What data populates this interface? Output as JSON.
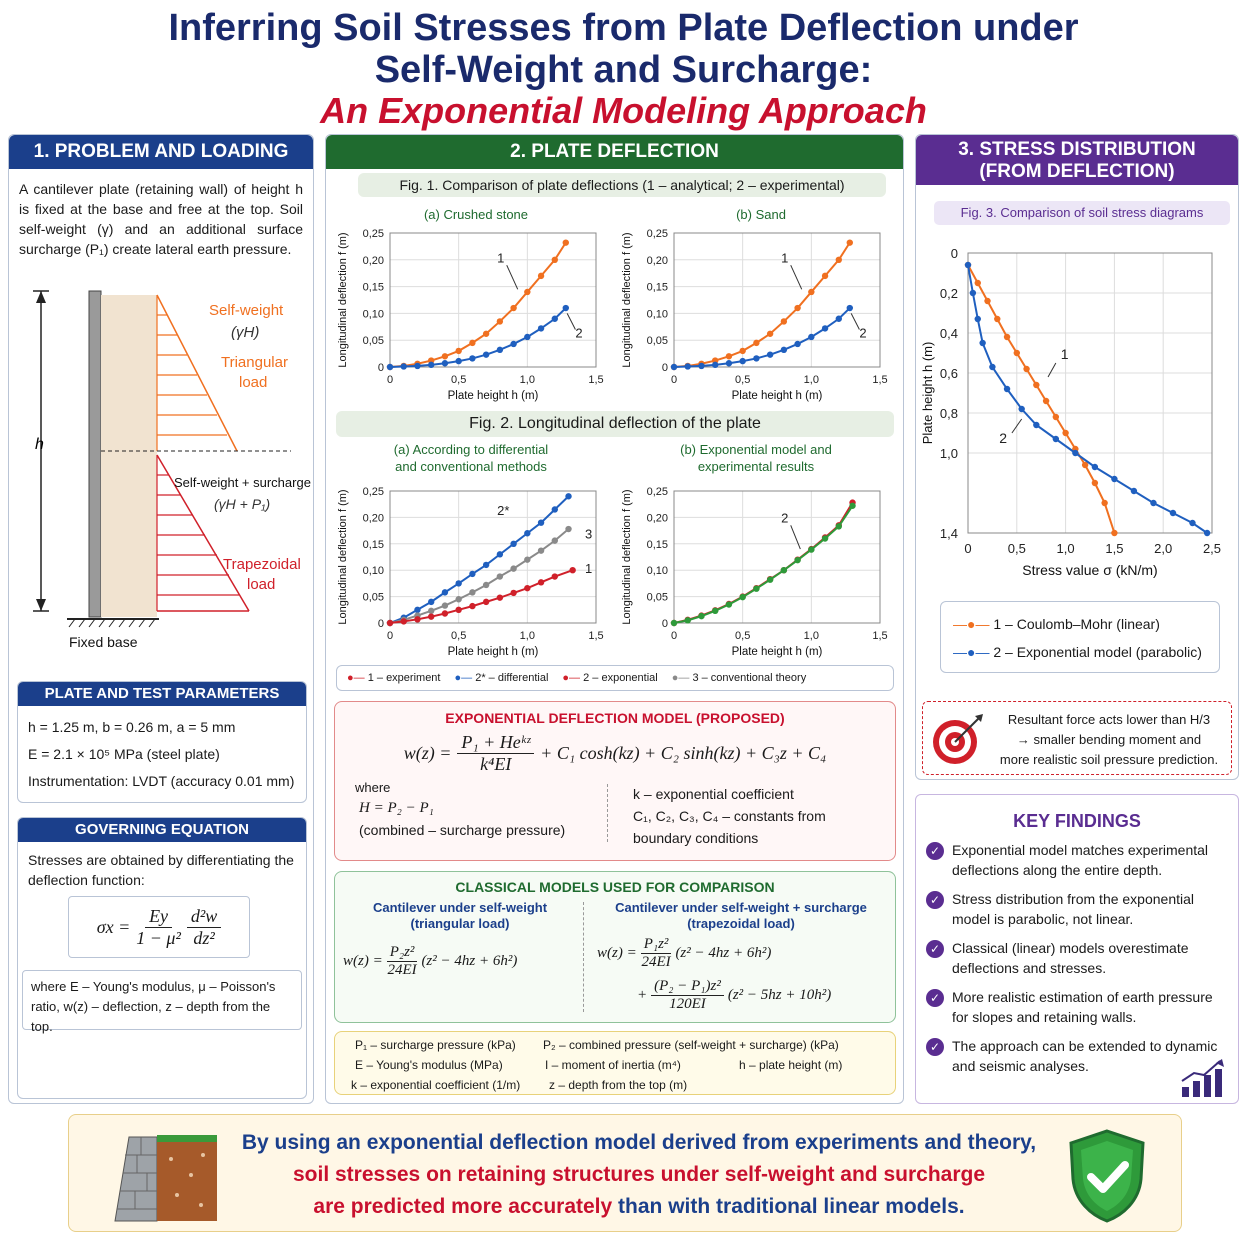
{
  "title": {
    "line1": "Inferring Soil Stresses from Plate Deflection under",
    "line2": "Self-Weight and Surcharge:",
    "line3": "An Exponential Modeling Approach"
  },
  "section1": {
    "header": "1. PROBLEM AND LOADING",
    "intro": "A cantilever plate (retaining wall) of height h is fixed at the base and free at the top. Soil self-weight (γ) and an additional surface surcharge (P₁) create lateral earth pressure.",
    "diagram": {
      "h_label": "h",
      "self_weight": "Self-weight",
      "gamma_h": "(γH)",
      "triangular": "Triangular",
      "load": "load",
      "sw_surcharge": "Self-weight + surcharge",
      "gamma_h_p1": "(γH + P₁)",
      "trapezoidal": "Trapezoidal",
      "load2": "load",
      "fixed_base": "Fixed base"
    },
    "params_header": "PLATE AND TEST PARAMETERS",
    "params": [
      "h = 1.25 m,  b = 0.26 m,  a = 5 mm",
      "E = 2.1 × 10⁵ MPa (steel plate)",
      "Instrumentation: LVDT (accuracy 0.01 mm)"
    ],
    "gov_header": "GOVERNING EQUATION",
    "gov_text": "Stresses are obtained by differentiating the deflection function:",
    "gov_eq_lhs": "σx =",
    "gov_eq_num1": "Ey",
    "gov_eq_den1": "1 − μ²",
    "gov_eq_num2": "d²w",
    "gov_eq_den2": "dz²",
    "gov_note": "where E – Young's modulus, μ – Poisson's ratio, w(z) – deflection, z – depth from the top."
  },
  "section2": {
    "header": "2. PLATE DEFLECTION",
    "fig1_caption": "Fig. 1. Comparison of plate deflections (1 – analytical; 2 – experimental)",
    "fig1a_title": "(a) Crushed stone",
    "fig1b_title": "(b) Sand",
    "fig2_caption": "Fig. 2. Longitudinal deflection of the plate",
    "fig2a_title_l1": "(a) According to differential",
    "fig2a_title_l2": "and conventional methods",
    "fig2b_title_l1": "(b) Exponential model and",
    "fig2b_title_l2": "experimental results",
    "ylabel": "Longitudinal deflection f (m)",
    "xlabel": "Plate height h (m)",
    "legend": [
      "1 – experiment",
      "2* – differential",
      "2 – exponential",
      "3 – conventional theory"
    ],
    "model_header": "EXPONENTIAL DEFLECTION MODEL (PROPOSED)",
    "model_eq": "w(z) = (P₁ + He^{kz}) / (k⁴EI) + C₁ cosh(kz) + C₂ sinh(kz) + C₃z + C₄",
    "model_eq_lhs": "w(z) =",
    "model_eq_num": "P₁ + Heᵏᶻ",
    "model_eq_den": "k⁴EI",
    "model_eq_rest": "+ C₁ cosh(kz) + C₂ sinh(kz) + C₃z + C₄",
    "where": "where",
    "h_def": "H = P₂ − P₁",
    "h_def_note": "(combined – surcharge pressure)",
    "k_def": "k – exponential coefficient",
    "c_def": "C₁, C₂, C₃, C₄ – constants from",
    "c_def2": "boundary conditions",
    "classic_header": "CLASSICAL MODELS USED FOR COMPARISON",
    "classic_left_title": "Cantilever under self-weight",
    "classic_left_sub": "(triangular load)",
    "classic_left_eq_lhs": "w(z) =",
    "classic_left_num": "P₂z²",
    "classic_left_den": "24EI",
    "classic_left_rest": "(z² − 4hz + 6h²)",
    "classic_right_title": "Cantilever under self-weight + surcharge",
    "classic_right_sub": "(trapezoidal load)",
    "classic_right_eq_lhs": "w(z) =",
    "classic_right_num1": "P₁z²",
    "classic_right_den1": "24EI",
    "classic_right_rest1": "(z² − 4hz + 6h²)",
    "classic_right_num2": "(P₂ − P₁)z²",
    "classic_right_den2": "120EI",
    "classic_right_rest2": "(z² − 5hz + 10h²)",
    "notation": [
      "P₁ – surcharge pressure (kPa)",
      "P₂ – combined pressure (self-weight + surcharge) (kPa)",
      "E – Young's modulus (MPa)",
      "I – moment of inertia (m⁴)",
      "h – plate height (m)",
      "k – exponential coefficient (1/m)",
      "z – depth from the top (m)"
    ]
  },
  "section3": {
    "header_l1": "3. STRESS DISTRIBUTION",
    "header_l2": "(FROM DEFLECTION)",
    "fig3_caption": "Fig. 3. Comparison of soil stress diagrams",
    "ylabel": "Plate height h (m)",
    "xlabel": "Stress value σ (kN/m)",
    "legend": [
      "1 – Coulomb–Mohr (linear)",
      "2 – Exponential model (parabolic)"
    ],
    "resultant": "Resultant force acts lower than H/3 → smaller bending moment and more realistic soil pressure prediction.",
    "resultant_l1": "Resultant force acts lower than H/3",
    "resultant_l2": "→ smaller bending moment and",
    "resultant_l3": "more realistic soil pressure prediction.",
    "findings_header": "KEY FINDINGS",
    "findings": [
      "Exponential model matches experimental deflections along the entire depth.",
      "Stress distribution from the exponential model is parabolic, not linear.",
      "Classical (linear) models overestimate deflections and stresses.",
      "More realistic estimation of earth pressure for slopes and retaining walls.",
      "The approach can be extended to dynamic and seismic analyses."
    ]
  },
  "footer": {
    "line1": "By using an exponential deflection model derived from experiments and theory,",
    "line2": "soil stresses on retaining structures under self-weight and surcharge",
    "line3a": "are predicted more accurately",
    "line3b": " than with traditional linear models."
  },
  "colors": {
    "orange": "#f07020",
    "blue": "#1f5fbf",
    "gray": "#8a8a8a",
    "red": "#d0202a",
    "green": "#2e9a3a"
  },
  "chart_data": [
    {
      "type": "line",
      "title": "(a) Crushed stone",
      "xlabel": "Plate height h (m)",
      "ylabel": "Longitudinal deflection f (m)",
      "xlim": [
        0,
        1.5
      ],
      "ylim": [
        0,
        0.25
      ],
      "xticks": [
        "0",
        "0,5",
        "1,0",
        "1,5"
      ],
      "yticks": [
        "0",
        "0,05",
        "0,10",
        "0,15",
        "0,20",
        "0,25"
      ],
      "series": [
        {
          "name": "1",
          "x": [
            0,
            0.1,
            0.2,
            0.3,
            0.4,
            0.5,
            0.6,
            0.7,
            0.8,
            0.9,
            1.0,
            1.1,
            1.2,
            1.28
          ],
          "y": [
            0,
            0.002,
            0.006,
            0.012,
            0.02,
            0.03,
            0.045,
            0.062,
            0.085,
            0.11,
            0.14,
            0.17,
            0.2,
            0.232
          ]
        },
        {
          "name": "2",
          "x": [
            0,
            0.1,
            0.2,
            0.3,
            0.4,
            0.5,
            0.6,
            0.7,
            0.8,
            0.9,
            1.0,
            1.1,
            1.2,
            1.28
          ],
          "y": [
            0,
            0.001,
            0.002,
            0.004,
            0.007,
            0.011,
            0.016,
            0.023,
            0.032,
            0.043,
            0.056,
            0.072,
            0.09,
            0.11
          ]
        }
      ]
    },
    {
      "type": "line",
      "title": "(b) Sand",
      "xlabel": "Plate height h (m)",
      "ylabel": "Longitudinal deflection f (m)",
      "xlim": [
        0,
        1.5
      ],
      "ylim": [
        0,
        0.25
      ],
      "xticks": [
        "0",
        "0,5",
        "1,0",
        "1,5"
      ],
      "yticks": [
        "0",
        "0,05",
        "0,10",
        "0,15",
        "0,20",
        "0,25"
      ],
      "series": [
        {
          "name": "1",
          "x": [
            0,
            0.1,
            0.2,
            0.3,
            0.4,
            0.5,
            0.6,
            0.7,
            0.8,
            0.9,
            1.0,
            1.1,
            1.2,
            1.28
          ],
          "y": [
            0,
            0.002,
            0.006,
            0.012,
            0.02,
            0.03,
            0.045,
            0.062,
            0.085,
            0.11,
            0.14,
            0.17,
            0.2,
            0.232
          ]
        },
        {
          "name": "2",
          "x": [
            0,
            0.1,
            0.2,
            0.3,
            0.4,
            0.5,
            0.6,
            0.7,
            0.8,
            0.9,
            1.0,
            1.1,
            1.2,
            1.28
          ],
          "y": [
            0,
            0.001,
            0.002,
            0.004,
            0.007,
            0.011,
            0.016,
            0.023,
            0.032,
            0.043,
            0.056,
            0.072,
            0.09,
            0.11
          ]
        }
      ]
    },
    {
      "type": "line",
      "title": "(a) According to differential and conventional methods",
      "xlabel": "Plate height h (m)",
      "ylabel": "Longitudinal deflection f (m)",
      "xlim": [
        0,
        1.5
      ],
      "ylim": [
        0,
        0.25
      ],
      "xticks": [
        "0",
        "0,5",
        "1,0",
        "1,5"
      ],
      "yticks": [
        "0",
        "0,05",
        "0,10",
        "0,15",
        "0,20",
        "0,25"
      ],
      "series": [
        {
          "name": "2*",
          "x": [
            0,
            0.1,
            0.2,
            0.3,
            0.4,
            0.5,
            0.6,
            0.7,
            0.8,
            0.9,
            1.0,
            1.1,
            1.2,
            1.3
          ],
          "y": [
            0,
            0.01,
            0.025,
            0.04,
            0.058,
            0.075,
            0.093,
            0.11,
            0.13,
            0.15,
            0.17,
            0.19,
            0.215,
            0.24
          ]
        },
        {
          "name": "3",
          "x": [
            0,
            0.1,
            0.2,
            0.3,
            0.4,
            0.5,
            0.6,
            0.7,
            0.8,
            0.9,
            1.0,
            1.1,
            1.2,
            1.3
          ],
          "y": [
            0,
            0.006,
            0.014,
            0.023,
            0.033,
            0.045,
            0.058,
            0.072,
            0.088,
            0.103,
            0.12,
            0.137,
            0.156,
            0.178
          ]
        },
        {
          "name": "1",
          "x": [
            0,
            0.1,
            0.2,
            0.3,
            0.4,
            0.5,
            0.6,
            0.7,
            0.8,
            0.9,
            1.0,
            1.1,
            1.2,
            1.33
          ],
          "y": [
            0,
            0.003,
            0.007,
            0.012,
            0.018,
            0.025,
            0.032,
            0.04,
            0.048,
            0.057,
            0.066,
            0.077,
            0.088,
            0.1
          ]
        }
      ]
    },
    {
      "type": "line",
      "title": "(b) Exponential model and experimental results",
      "xlabel": "Plate height h (m)",
      "ylabel": "Longitudinal deflection f (m)",
      "xlim": [
        0,
        1.5
      ],
      "ylim": [
        0,
        0.25
      ],
      "xticks": [
        "0",
        "0,5",
        "1,0",
        "1,5"
      ],
      "yticks": [
        "0",
        "0,05",
        "0,10",
        "0,15",
        "0,20",
        "0,25"
      ],
      "series": [
        {
          "name": "2",
          "x": [
            0,
            0.1,
            0.2,
            0.3,
            0.4,
            0.5,
            0.6,
            0.7,
            0.8,
            0.9,
            1.0,
            1.1,
            1.2,
            1.3
          ],
          "y": [
            0,
            0.006,
            0.014,
            0.024,
            0.036,
            0.05,
            0.066,
            0.083,
            0.1,
            0.12,
            0.14,
            0.162,
            0.185,
            0.228
          ]
        },
        {
          "name": "1",
          "x": [
            0,
            0.1,
            0.2,
            0.3,
            0.4,
            0.5,
            0.6,
            0.7,
            0.8,
            0.9,
            1.0,
            1.1,
            1.2,
            1.3
          ],
          "y": [
            0,
            0.005,
            0.013,
            0.023,
            0.035,
            0.049,
            0.065,
            0.082,
            0.1,
            0.119,
            0.139,
            0.16,
            0.183,
            0.222
          ]
        }
      ]
    },
    {
      "type": "line",
      "title": "Fig. 3. Comparison of soil stress diagrams",
      "xlabel": "Stress value σ (kN/m)",
      "ylabel": "Plate height h (m)",
      "xlim": [
        0,
        2.5
      ],
      "ylim": [
        0,
        1.4
      ],
      "y_inverted": true,
      "xticks": [
        "0",
        "0,5",
        "1,0",
        "1,5",
        "2,0",
        "2,5"
      ],
      "yticks": [
        "0",
        "0,2",
        "0,4",
        "0,6",
        "0,8",
        "1,0",
        "1,4"
      ],
      "series": [
        {
          "name": "1 – Coulomb–Mohr (linear)",
          "x": [
            0,
            0.1,
            0.2,
            0.3,
            0.4,
            0.5,
            0.6,
            0.7,
            0.8,
            0.9,
            1.0,
            1.1,
            1.2,
            1.3,
            1.4,
            1.5
          ],
          "y": [
            0.06,
            0.15,
            0.24,
            0.33,
            0.42,
            0.5,
            0.58,
            0.66,
            0.74,
            0.82,
            0.9,
            0.98,
            1.06,
            1.15,
            1.25,
            1.4
          ]
        },
        {
          "name": "2 – Exponential model (parabolic)",
          "x": [
            0,
            0.05,
            0.1,
            0.15,
            0.25,
            0.4,
            0.55,
            0.7,
            0.9,
            1.1,
            1.3,
            1.5,
            1.7,
            1.9,
            2.1,
            2.3,
            2.45
          ],
          "y": [
            0.06,
            0.2,
            0.33,
            0.45,
            0.57,
            0.68,
            0.78,
            0.86,
            0.93,
            1.0,
            1.07,
            1.13,
            1.19,
            1.25,
            1.3,
            1.35,
            1.4
          ]
        }
      ]
    }
  ]
}
